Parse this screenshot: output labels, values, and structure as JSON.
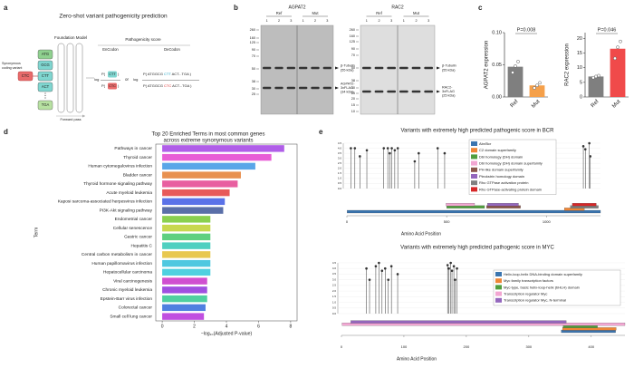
{
  "panel_labels": [
    "a",
    "b",
    "c",
    "d",
    "e"
  ],
  "diagram": {
    "title": "Zero-shot variant pathogenicity prediction",
    "model": "Foundation Model",
    "score": "Pathogenicity score",
    "encodon": "EnCodon",
    "decodon": "DeCodon",
    "variant": [
      "Synonymous",
      "coding variant"
    ],
    "codons": [
      "ATG",
      "GCG",
      "CTT",
      "ACT",
      "TGA"
    ],
    "mut_codon": "CTC",
    "forward": "Forward pass",
    "log": "log",
    "or": "or",
    "p_open": "P(",
    "p_close": ")",
    "enc_num": "CTT",
    "enc_den": "CTC",
    "dec_num": [
      "P( ATGGCG ",
      "CTT",
      " ACT...TGA )"
    ],
    "dec_den": [
      "P( ATGGCG ",
      "CTC",
      " ACT...TGA )"
    ]
  },
  "blots": [
    {
      "protein": "AGPAT2",
      "groups": [
        "Ref",
        "Mut"
      ],
      "lanes": [
        "1",
        "2",
        "3",
        "1",
        "2",
        "3"
      ],
      "markers": [
        "260",
        "160",
        "125",
        "90",
        "70",
        "50",
        "38",
        "30",
        "25"
      ],
      "bands": [
        [
          "β-Tubulin",
          "(55 kDa)"
        ],
        [
          "AGPAT2-",
          "3xFLAG",
          "(34 kDa)"
        ]
      ]
    },
    {
      "protein": "RAC2",
      "groups": [
        "Ref",
        "Mut"
      ],
      "lanes": [
        "1",
        "2",
        "3",
        "1",
        "2",
        "3"
      ],
      "markers": [
        "260",
        "160",
        "125",
        "90",
        "70",
        "50",
        "38",
        "30",
        "25",
        "20",
        "15",
        "10"
      ],
      "bands": [
        [
          "β-Tubulin",
          "(55 kDa)"
        ],
        [
          "RAC2-",
          "3xFLAG",
          "(25 kDa)"
        ]
      ]
    }
  ],
  "chart_data": [
    {
      "type": "bar",
      "ylabel": "AGPAT2 expression",
      "categories": [
        "Ref",
        "Mut"
      ],
      "values": [
        0.047,
        0.018
      ],
      "colors": [
        "#7f7f7f",
        "#f5a04a"
      ],
      "points": [
        [
          0.038,
          0.048,
          0.055
        ],
        [
          0.014,
          0.018,
          0.022
        ]
      ],
      "annotation": "P=0.008",
      "ylim": [
        0,
        0.1
      ],
      "yticks": [
        {
          "value": 0,
          "label": "0.00"
        },
        {
          "value": 0.05,
          "label": "0.05"
        },
        {
          "value": 0.1,
          "label": "0.10"
        }
      ]
    },
    {
      "type": "bar",
      "ylabel": "RAC2 expression",
      "categories": [
        "Ref",
        "Mut"
      ],
      "values": [
        7,
        16.5
      ],
      "colors": [
        "#7f7f7f",
        "#f04a4a"
      ],
      "points": [
        [
          6.6,
          7,
          7.3
        ],
        [
          13.2,
          17,
          19
        ]
      ],
      "annotation": "P=0.046",
      "ylim": [
        0,
        22
      ],
      "yticks": [
        0,
        5,
        10,
        15,
        20
      ]
    },
    {
      "type": "barh",
      "title": [
        "Top 20 Enriched Terms in most common genes",
        "across extreme synonymous variants"
      ],
      "xlabel": "−log₁₀(Adjusted P-value)",
      "ylabel": "Term",
      "categories": [
        "Pathways in cancer",
        "Thyroid cancer",
        "Human cytomegalovirus infection",
        "Bladder cancer",
        "Thyroid hormone signaling pathway",
        "Acute myeloid leukemia",
        "Kaposi sarcoma-associated herpesvirus infection",
        "PI3K-Akt signaling pathway",
        "Endometrial cancer",
        "Cellular senescence",
        "Gastric cancer",
        "Hepatitis C",
        "Central carbon metabolism in cancer",
        "Human papillomavirus infection",
        "Hepatocellular carcinoma",
        "Viral carcinogenesis",
        "Chronic myeloid leukemia",
        "Epstein-Barr virus infection",
        "Colorectal cancer",
        "Small cell lung cancer"
      ],
      "values": [
        7.6,
        6.8,
        5.8,
        4.9,
        4.7,
        4.2,
        3.9,
        3.8,
        3.0,
        3.0,
        3.0,
        3.0,
        3.0,
        3.0,
        3.0,
        2.8,
        2.8,
        2.8,
        2.7,
        2.6
      ],
      "colors": [
        "#b05ee8",
        "#e85ed6",
        "#5aa6e8",
        "#e8904f",
        "#e85fa0",
        "#e85a5a",
        "#5a72e8",
        "#5a6fa8",
        "#8ad04f",
        "#c8d84f",
        "#5fd080",
        "#4fd0c0",
        "#e8c84f",
        "#4fc8e0",
        "#4fd0e0",
        "#d04fd0",
        "#a04fe0",
        "#4fd0a0",
        "#4f80e0",
        "#c04fe0"
      ],
      "xlim": [
        -0.4,
        8.4
      ],
      "xticks": [
        0,
        2,
        4,
        6,
        8
      ]
    },
    {
      "type": "lollipop",
      "title": "Variants with extremely high predicted pathogenic score in BCR",
      "xlabel": "Amino Acid Position",
      "color": "#333333",
      "x": [
        20,
        40,
        65,
        100,
        185,
        205,
        215,
        225,
        240,
        255,
        340,
        360,
        455,
        490,
        1185,
        1195,
        1215,
        1220
      ],
      "values": [
        4.0,
        4.0,
        3.2,
        3.8,
        4.0,
        4.0,
        3.5,
        4.0,
        3.8,
        4.0,
        2.7,
        3.5,
        4.0,
        3.5,
        4.2,
        3.9,
        4.5,
        3.2
      ],
      "xlim": [
        0,
        1271
      ],
      "xticks": [
        0,
        500,
        1000
      ],
      "ylim": [
        0,
        4.5
      ],
      "yticks": [
        {
          "value": 0,
          "label": "0.0"
        },
        0.5,
        {
          "value": 1,
          "label": "1.0"
        },
        1.5,
        {
          "value": 2,
          "label": "2.0"
        },
        2.5,
        {
          "value": 3,
          "label": "3.0"
        },
        3.5,
        {
          "value": 4,
          "label": "4.0"
        },
        4.5
      ],
      "domains": [
        {
          "name": "Abr/Bcr",
          "color": "#3b75af",
          "start": 1,
          "end": 1271
        },
        {
          "name": "C2 domain superfamily",
          "color": "#ef8636",
          "start": 1090,
          "end": 1190
        },
        {
          "name": "Dbl homology (DH) domain",
          "color": "#519e3e",
          "start": 500,
          "end": 690
        },
        {
          "name": "Dbl homology (DH) domain superfamily",
          "color": "#f2a6d2",
          "start": 497,
          "end": 640
        },
        {
          "name": "PH-like domain superfamily",
          "color": "#8c564b",
          "start": 700,
          "end": 870
        },
        {
          "name": "Pleckstrin homology domain",
          "color": "#9467bd",
          "start": 705,
          "end": 860
        },
        {
          "name": "Rho GTPase activation protein",
          "color": "#7f7f7f",
          "start": 1120,
          "end": 1260
        },
        {
          "name": "Rho GTPase-activating protein domain",
          "color": "#d62728",
          "start": 1130,
          "end": 1250
        }
      ]
    },
    {
      "type": "lollipop",
      "title": "Variants with extremely high predicted pathogenic score in MYC",
      "xlabel": "Amino Acid Position",
      "color": "#333333",
      "x": [
        40,
        45,
        55,
        60,
        65,
        70,
        75,
        80,
        90,
        170,
        172,
        175,
        177,
        180,
        182,
        185
      ],
      "values": [
        4.0,
        3.0,
        4.2,
        4.5,
        3.8,
        4.0,
        3.0,
        4.2,
        3.5,
        4.3,
        4.0,
        4.5,
        3.8,
        4.2,
        3.0,
        4.0
      ],
      "xlim": [
        0,
        454
      ],
      "xticks": [
        0,
        100,
        200,
        300,
        400
      ],
      "ylim": [
        0,
        4.5
      ],
      "yticks": [
        {
          "value": 0,
          "label": "0.0"
        },
        0.5,
        {
          "value": 1,
          "label": "1.0"
        },
        1.5,
        {
          "value": 2,
          "label": "2.0"
        },
        2.5,
        {
          "value": 3,
          "label": "3.0"
        },
        3.5,
        {
          "value": 4,
          "label": "4.0"
        },
        4.5
      ],
      "domains": [
        {
          "name": "Helix-loop-helix DNA-binding domain superfamily",
          "color": "#3b75af",
          "start": 352,
          "end": 439
        },
        {
          "name": "Myc family transcription factors",
          "color": "#ef8636",
          "start": 354,
          "end": 440
        },
        {
          "name": "Myc-type, basic helix-loop-helix (bHLH) domain",
          "color": "#519e3e",
          "start": 355,
          "end": 410
        },
        {
          "name": "Transcription regulator Myc",
          "color": "#f2a6d2",
          "start": 1,
          "end": 454
        },
        {
          "name": "Transcription regulator Myc, N-terminal",
          "color": "#9467bd",
          "start": 15,
          "end": 360
        }
      ]
    }
  ]
}
